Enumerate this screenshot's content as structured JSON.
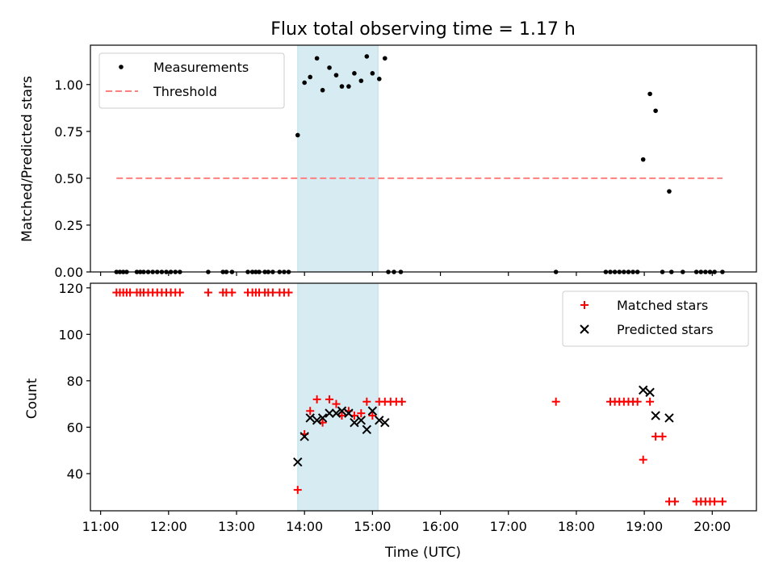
{
  "chart_data": [
    {
      "type": "scatter",
      "title": "Flux total observing time = 1.17 h",
      "xlabel": "",
      "ylabel": "Matched/Predicted stars",
      "xlim": [
        "10:51",
        "20:39"
      ],
      "ylim": [
        0,
        1.21
      ],
      "yticks": [
        "0.00",
        "0.25",
        "0.50",
        "0.75",
        "1.00"
      ],
      "ytick_values": [
        0,
        0.25,
        0.5,
        0.75,
        1.0
      ],
      "legend": "top-left",
      "highlight": {
        "x_start": "13:54",
        "x_end": "15:05",
        "color": "#add8e6"
      },
      "series": [
        {
          "name": "Measurements",
          "color": "#000000",
          "marker": "dot",
          "points": [
            [
              "11:14",
              0
            ],
            [
              "11:17",
              0
            ],
            [
              "11:20",
              0
            ],
            [
              "11:23",
              0
            ],
            [
              "11:32",
              0
            ],
            [
              "11:35",
              0
            ],
            [
              "11:38",
              0
            ],
            [
              "11:42",
              0
            ],
            [
              "11:46",
              0
            ],
            [
              "11:50",
              0
            ],
            [
              "11:54",
              0
            ],
            [
              "11:58",
              0
            ],
            [
              "12:02",
              0
            ],
            [
              "12:06",
              0
            ],
            [
              "12:10",
              0
            ],
            [
              "12:35",
              0
            ],
            [
              "12:48",
              0
            ],
            [
              "12:51",
              0
            ],
            [
              "12:56",
              0
            ],
            [
              "13:10",
              0
            ],
            [
              "13:14",
              0
            ],
            [
              "13:17",
              0
            ],
            [
              "13:20",
              0
            ],
            [
              "13:25",
              0
            ],
            [
              "13:28",
              0
            ],
            [
              "13:32",
              0
            ],
            [
              "13:38",
              0
            ],
            [
              "13:42",
              0
            ],
            [
              "13:46",
              0
            ],
            [
              "13:54",
              0.73
            ],
            [
              "14:00",
              1.01
            ],
            [
              "14:05",
              1.04
            ],
            [
              "14:11",
              1.14
            ],
            [
              "14:16",
              0.97
            ],
            [
              "14:22",
              1.09
            ],
            [
              "14:28",
              1.05
            ],
            [
              "14:33",
              0.99
            ],
            [
              "14:39",
              0.99
            ],
            [
              "14:44",
              1.06
            ],
            [
              "14:50",
              1.02
            ],
            [
              "14:55",
              1.15
            ],
            [
              "15:00",
              1.06
            ],
            [
              "15:06",
              1.03
            ],
            [
              "15:11",
              1.14
            ],
            [
              "15:14",
              0
            ],
            [
              "15:19",
              0
            ],
            [
              "15:25",
              0
            ],
            [
              "17:42",
              0
            ],
            [
              "18:26",
              0
            ],
            [
              "18:30",
              0
            ],
            [
              "18:34",
              0
            ],
            [
              "18:38",
              0
            ],
            [
              "18:42",
              0
            ],
            [
              "18:46",
              0
            ],
            [
              "18:50",
              0
            ],
            [
              "18:54",
              0
            ],
            [
              "18:59",
              0.6
            ],
            [
              "19:05",
              0.95
            ],
            [
              "19:10",
              0.86
            ],
            [
              "19:22",
              0.43
            ],
            [
              "19:16",
              0
            ],
            [
              "19:24",
              0
            ],
            [
              "19:34",
              0
            ],
            [
              "19:46",
              0
            ],
            [
              "19:50",
              0
            ],
            [
              "19:54",
              0
            ],
            [
              "19:58",
              0
            ],
            [
              "20:02",
              0
            ],
            [
              "20:09",
              0
            ]
          ]
        },
        {
          "name": "Threshold",
          "color": "#ff7f7f",
          "style": "dashed",
          "points": [
            [
              "11:14",
              0.5
            ],
            [
              "20:09",
              0.5
            ]
          ]
        }
      ]
    },
    {
      "type": "scatter",
      "title": "",
      "xlabel": "Time (UTC)",
      "ylabel": "Count",
      "xlim": [
        "10:51",
        "20:39"
      ],
      "ylim": [
        24,
        122
      ],
      "xticks": [
        "11:00",
        "12:00",
        "13:00",
        "14:00",
        "15:00",
        "16:00",
        "17:00",
        "18:00",
        "19:00",
        "20:00"
      ],
      "yticks": [
        "40",
        "60",
        "80",
        "100",
        "120"
      ],
      "ytick_values": [
        40,
        60,
        80,
        100,
        120
      ],
      "legend": "top-right",
      "highlight": {
        "x_start": "13:54",
        "x_end": "15:05",
        "color": "#add8e6"
      },
      "series": [
        {
          "name": "Matched stars",
          "color": "#ff0000",
          "marker": "plus",
          "points": [
            [
              "11:14",
              118
            ],
            [
              "11:17",
              118
            ],
            [
              "11:20",
              118
            ],
            [
              "11:23",
              118
            ],
            [
              "11:26",
              118
            ],
            [
              "11:32",
              118
            ],
            [
              "11:35",
              118
            ],
            [
              "11:38",
              118
            ],
            [
              "11:42",
              118
            ],
            [
              "11:46",
              118
            ],
            [
              "11:50",
              118
            ],
            [
              "11:54",
              118
            ],
            [
              "11:58",
              118
            ],
            [
              "12:02",
              118
            ],
            [
              "12:06",
              118
            ],
            [
              "12:10",
              118
            ],
            [
              "12:35",
              118
            ],
            [
              "12:48",
              118
            ],
            [
              "12:51",
              118
            ],
            [
              "12:56",
              118
            ],
            [
              "13:10",
              118
            ],
            [
              "13:14",
              118
            ],
            [
              "13:17",
              118
            ],
            [
              "13:20",
              118
            ],
            [
              "13:25",
              118
            ],
            [
              "13:28",
              118
            ],
            [
              "13:32",
              118
            ],
            [
              "13:38",
              118
            ],
            [
              "13:42",
              118
            ],
            [
              "13:46",
              118
            ],
            [
              "13:54",
              33
            ],
            [
              "14:00",
              57
            ],
            [
              "14:05",
              67
            ],
            [
              "14:11",
              72
            ],
            [
              "14:16",
              62
            ],
            [
              "14:22",
              72
            ],
            [
              "14:28",
              70
            ],
            [
              "14:33",
              65
            ],
            [
              "14:39",
              67
            ],
            [
              "14:44",
              65
            ],
            [
              "14:50",
              66
            ],
            [
              "14:55",
              71
            ],
            [
              "15:00",
              65
            ],
            [
              "15:06",
              71
            ],
            [
              "15:11",
              71
            ],
            [
              "15:16",
              71
            ],
            [
              "15:21",
              71
            ],
            [
              "15:26",
              71
            ],
            [
              "17:42",
              71
            ],
            [
              "18:30",
              71
            ],
            [
              "18:34",
              71
            ],
            [
              "18:38",
              71
            ],
            [
              "18:42",
              71
            ],
            [
              "18:46",
              71
            ],
            [
              "18:50",
              71
            ],
            [
              "18:54",
              71
            ],
            [
              "18:59",
              46
            ],
            [
              "19:05",
              71
            ],
            [
              "19:10",
              56
            ],
            [
              "19:16",
              56
            ],
            [
              "19:22",
              28
            ],
            [
              "19:27",
              28
            ],
            [
              "19:46",
              28
            ],
            [
              "19:50",
              28
            ],
            [
              "19:54",
              28
            ],
            [
              "19:58",
              28
            ],
            [
              "20:02",
              28
            ],
            [
              "20:09",
              28
            ]
          ]
        },
        {
          "name": "Predicted stars",
          "color": "#000000",
          "marker": "x",
          "points": [
            [
              "13:54",
              45
            ],
            [
              "14:00",
              56
            ],
            [
              "14:05",
              64
            ],
            [
              "14:11",
              63
            ],
            [
              "14:16",
              64
            ],
            [
              "14:22",
              66
            ],
            [
              "14:28",
              66
            ],
            [
              "14:33",
              67
            ],
            [
              "14:39",
              66
            ],
            [
              "14:44",
              62
            ],
            [
              "14:50",
              63
            ],
            [
              "14:55",
              59
            ],
            [
              "15:00",
              67
            ],
            [
              "15:06",
              63
            ],
            [
              "15:11",
              62
            ],
            [
              "18:59",
              76
            ],
            [
              "19:05",
              75
            ],
            [
              "19:10",
              65
            ],
            [
              "19:22",
              64
            ]
          ]
        }
      ]
    }
  ]
}
